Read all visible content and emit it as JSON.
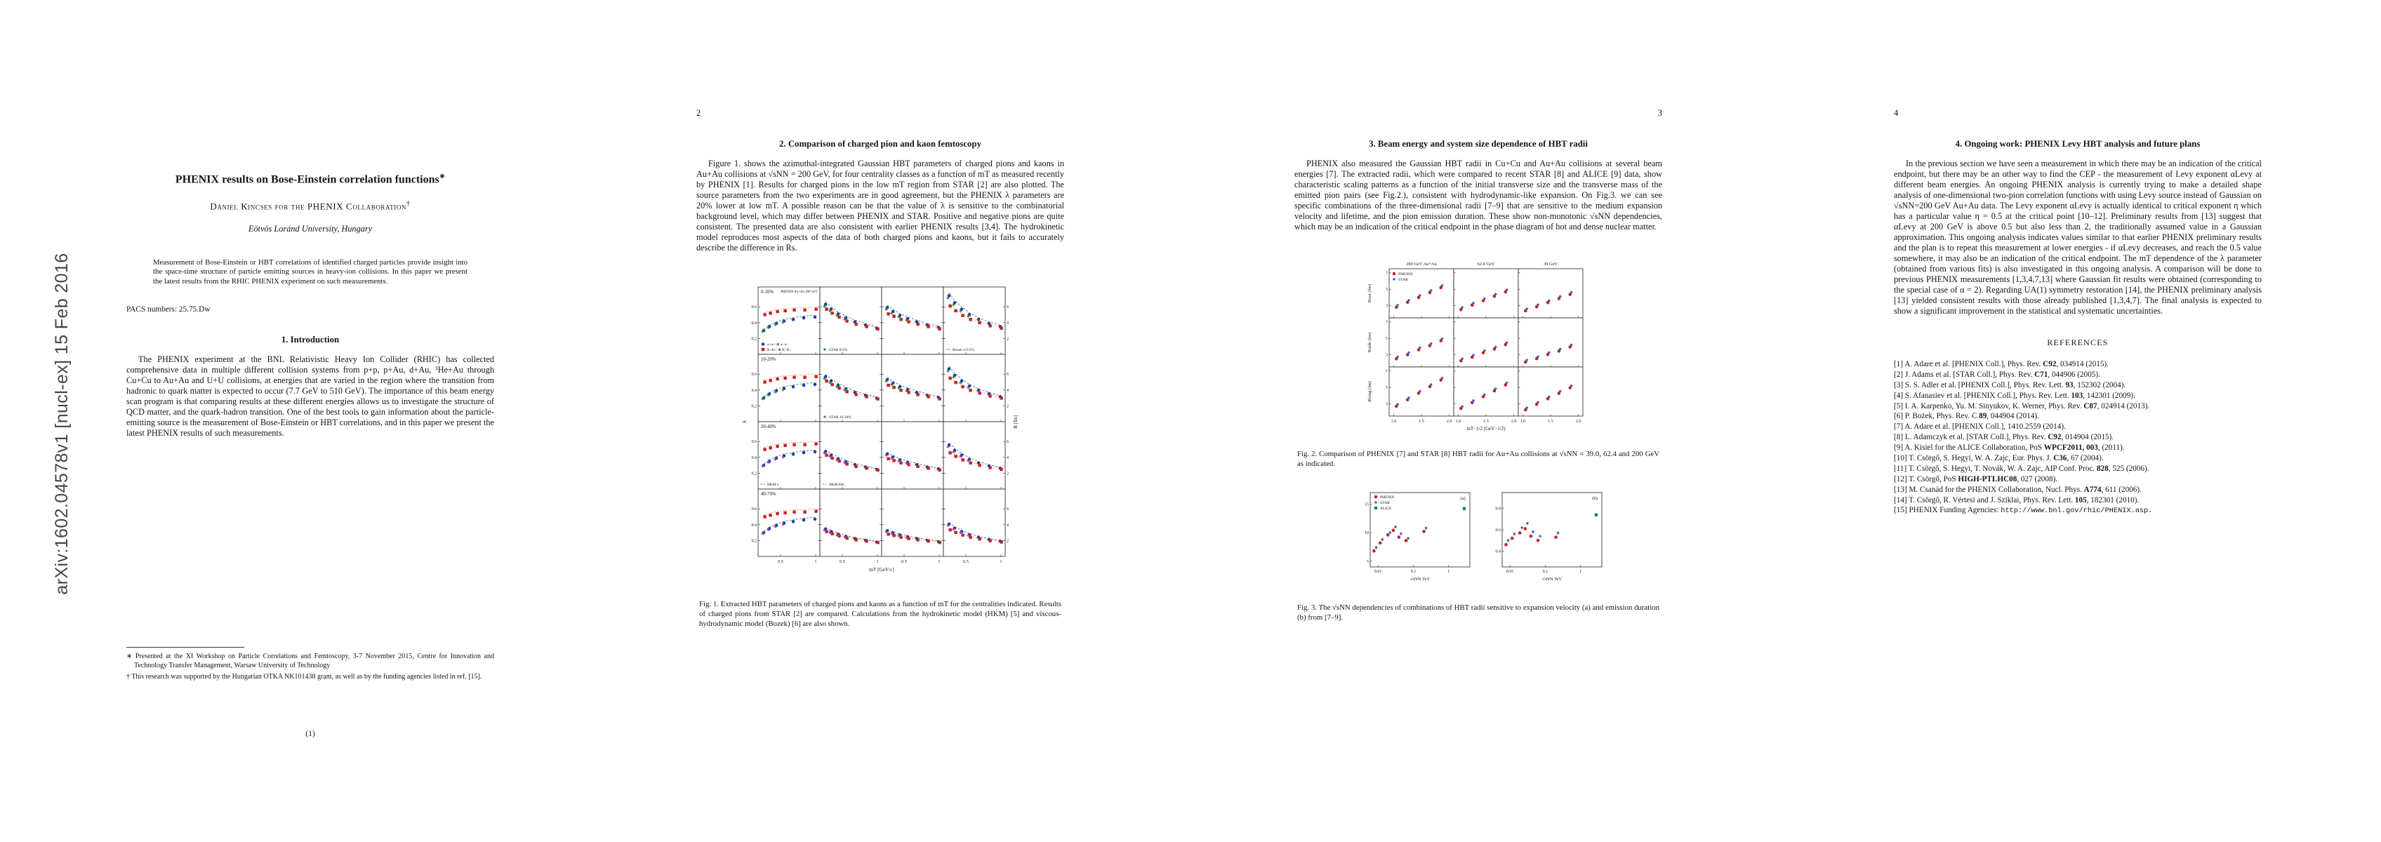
{
  "watermark": "arXiv:1602.04578v1  [nucl-ex]  15 Feb 2016",
  "page1": {
    "title": "PHENIX results on Bose-Einstein correlation functions",
    "title_note": "∗",
    "author": "Dániel Kincses for the PHENIX Collaboration",
    "author_note": "†",
    "affiliation": "Eötvös Loránd University, Hungary",
    "abstract": "Measurement of Bose-Einstein or HBT correlations of identified charged particles provide insight into the space-time structure of particle emitting sources in heavy-ion collisions. In this paper we present the latest results from the RHIC PHENIX experiment on such measurements.",
    "pacs": "PACS numbers: 25.75.Dw",
    "section1_heading": "1. Introduction",
    "intro": "The PHENIX experiment at the BNL Relativistic Heavy Ion Collider (RHIC) has collected comprehensive data in multiple different collision systems from p+p, p+Au, d+Au, ³He+Au through Cu+Cu to Au+Au and U+U collisions, at energies that are varied in the region where the transition from hadronic to quark matter is expected to occur (7.7 GeV to 510 GeV). The importance of this beam energy scan program is that comparing results at these different energies allows us to investigate the structure of QCD matter, and the quark-hadron transition. One of the best tools to gain information about the particle-emitting source is the measurement of Bose-Einstein or HBT correlations, and in this paper we present the latest PHENIX results of such measurements.",
    "footnote_star": "∗ Presented at the XI Workshop on Particle Correlations and Femtoscopy, 3-7 November 2015, Centre for Innovation and Technology Transfer Management, Warsaw University of Technology",
    "footnote_dagger": "† This research was supported by the Hungarian OTKA NK101438 grant, as well as by the funding agencies listed in ref. [15].",
    "page_number": "(1)"
  },
  "page2": {
    "page_number": "2",
    "heading": "2. Comparison of charged pion and kaon femtoscopy",
    "body": "Figure 1. shows the azimuthal-integrated Gaussian HBT parameters of charged pions and kaons in Au+Au collisions at √sNN = 200 GeV, for four centrality classes as a function of mT as measured recently by PHENIX [1]. Results for charged pions in the low mT region from STAR [2] are also plotted. The source parameters from the two experiments are in good agreement, but the PHENIX λ parameters are 20% lower at low mT. A possible reason can be that the value of λ is sensitive to the combinatorial background level, which may differ between PHENIX and STAR. Positive and negative pions are quite consistent. The presented data are also consistent with earlier PHENIX results [3,4]. The hydrokinetic model reproduces most aspects of the data of both charged pions and kaons, but it fails to accurately describe the difference in Rs.",
    "fig1_caption": "Fig. 1. Extracted HBT parameters of charged pions and kaons as a function of mT for the centralities indicated. Results of charged pions from STAR [2] are compared. Calculations from the hydrokinetic model (HKM) [5] and viscous-hydrodynamic model (Bozek) [6] are also shown.",
    "fig1": {
      "header": "PHENIX Au+Au 200 GeV",
      "rows": [
        "0-10%",
        "10-20%",
        "20-40%",
        "40-70%"
      ],
      "ylabel_left": "λ",
      "ylabel_right": "R [fm]",
      "xlabel": "mT [GeV/c]",
      "xticks": [
        0.5,
        1
      ],
      "x": [
        0.26,
        0.34,
        0.44,
        0.55,
        0.68,
        0.83,
        0.99
      ],
      "ylim_lambda": [
        0,
        0.85
      ],
      "ylim_r": [
        0,
        8.5
      ],
      "yticks_lambda": [
        0.2,
        0.4,
        0.6
      ],
      "yticks_r": [
        2,
        4,
        6
      ],
      "row_scale": [
        1.0,
        0.9,
        0.75,
        0.55
      ],
      "base": {
        "lambda": {
          "pi": [
            0.3,
            0.35,
            0.39,
            0.42,
            0.44,
            0.46,
            0.47
          ],
          "k": [
            0.5,
            0.52,
            0.54,
            0.55,
            0.56,
            0.56,
            0.57
          ]
        },
        "rout": {
          "pi": [
            6.3,
            5.7,
            5.1,
            4.6,
            4.1,
            3.7,
            3.3
          ],
          "k": [
            5.7,
            5.2,
            4.7,
            4.2,
            3.8,
            3.5,
            3.2
          ]
        },
        "rside": {
          "pi": [
            5.9,
            5.4,
            4.9,
            4.5,
            4.1,
            3.7,
            3.4
          ],
          "k": [
            5.1,
            4.8,
            4.4,
            4.1,
            3.8,
            3.5,
            3.2
          ]
        },
        "rlong": {
          "pi": [
            7.4,
            6.5,
            5.7,
            5.0,
            4.4,
            3.9,
            3.5
          ],
          "k": [
            6.1,
            5.5,
            4.9,
            4.4,
            4.0,
            3.6,
            3.3
          ]
        }
      },
      "series_colors": {
        "pi": "#1b3faa",
        "k": "#c42127",
        "star": "#1e8f3e",
        "star2": "#a43fb4",
        "hkm": "#666666",
        "hkmk": "#d97d1f"
      },
      "legend_panels": [
        {
          "row": 0,
          "col": 0,
          "items": [
            {
              "label": "π+π+ ⊕ π−π−",
              "marker": "circle",
              "color": "#1b3faa"
            },
            {
              "label": "K+K+ ⊕ K−K−",
              "marker": "square",
              "color": "#c42127"
            }
          ]
        },
        {
          "row": 0,
          "col": 1,
          "items": [
            {
              "label": "STAR 0-5%",
              "marker": "star",
              "color": "#1e8f3e"
            }
          ]
        },
        {
          "row": 1,
          "col": 1,
          "items": [
            {
              "label": "STAR 10-20%",
              "marker": "star",
              "color": "#a43fb4"
            }
          ]
        },
        {
          "row": 2,
          "col": 0,
          "items": [
            {
              "label": "HKM π",
              "marker": "dash",
              "color": "#666666"
            }
          ]
        },
        {
          "row": 2,
          "col": 1,
          "items": [
            {
              "label": "HKM KK",
              "marker": "dash",
              "color": "#d97d1f"
            }
          ]
        },
        {
          "row": 0,
          "col": 3,
          "items": [
            {
              "label": "Bozek π 0-5%",
              "marker": "dash",
              "color": "#17939b"
            }
          ]
        }
      ]
    }
  },
  "page3": {
    "page_number": "3",
    "heading": "3. Beam energy and system size dependence of HBT radii",
    "body": "PHENIX also measured the Gaussian HBT radii in Cu+Cu and Au+Au collisions at several beam energies [7]. The extracted radii, which were compared to recent STAR [8] and ALICE [9] data, show characteristic scaling patterns as a function of the initial transverse size and the transverse mass of the emitted pion pairs (see Fig.2.), consistent with hydrodynamic-like expansion. On Fig.3. we can see specific combinations of the three-dimensional radii [7–9] that are sensitive to the medium expansion velocity and lifetime, and the pion emission duration. These show non-monotonic √sNN dependencies, which may be an indication of the critical endpoint in the phase diagram of hot and dense nuclear matter.",
    "fig2_caption": "Fig. 2. Comparison of PHENIX [7] and STAR [8] HBT radii for Au+Au collisions at √sNN = 39.0, 62.4 and 200 GeV as indicated.",
    "fig3_caption": "Fig. 3. The √sNN dependencies of combinations of HBT radii sensitive to expansion velocity (a) and emission duration (b) from [7–9].",
    "fig2": {
      "col_headers": [
        "200 GeV Au+Au",
        "62.4 GeV",
        "39 GeV"
      ],
      "legend": [
        {
          "label": "PHENIX",
          "marker": "circle",
          "color": "#c42127",
          "open": false
        },
        {
          "label": "STAR",
          "marker": "star",
          "color": "#2b4bc4",
          "open": true
        }
      ],
      "row_ylabels": [
        "Rout (fm)",
        "Rside (fm)",
        "Rlong (fm)"
      ],
      "xlabel": "mT−1/2 (GeV−1/2)",
      "xticks": [
        1.0,
        1.5,
        2.0
      ],
      "x": [
        1.05,
        1.25,
        1.45,
        1.65,
        1.85
      ],
      "ylim": [
        1.5,
        7.5
      ],
      "yticks": [
        3,
        5,
        7
      ],
      "col_scale": [
        1.0,
        0.9,
        0.84
      ],
      "rows_base": [
        [
          2.8,
          3.4,
          4.0,
          4.6,
          5.2
        ],
        [
          2.5,
          3.0,
          3.6,
          4.1,
          4.7
        ],
        [
          2.7,
          3.5,
          4.3,
          5.1,
          5.9
        ]
      ]
    },
    "fig3": {
      "xlabel": "√sNN TeV",
      "xticks": [
        "0.01",
        "0.1",
        "1"
      ],
      "xlim": [
        0.006,
        4
      ],
      "legend": [
        {
          "label": "PHENIX",
          "marker": "circle",
          "color": "#c42127",
          "open": false
        },
        {
          "label": "STAR",
          "marker": "star",
          "color": "#2b4bc4",
          "open": true
        },
        {
          "label": "ALICE",
          "marker": "square",
          "color": "#1e8f3e",
          "open": false
        }
      ],
      "panels": [
        {
          "letter": "(a)",
          "ylim": [
            4,
            17
          ],
          "yticks": [
            5,
            10,
            15
          ],
          "phenix": {
            "x": [
              0.0077,
              0.0115,
              0.019,
              0.027,
              0.039,
              0.062,
              0.2
            ],
            "y": [
              6.8,
              8.2,
              9.6,
              10.4,
              9.2,
              8.6,
              10.2
            ]
          },
          "star": {
            "x": [
              0.0077,
              0.0115,
              0.019,
              0.027,
              0.039,
              0.062,
              0.2
            ],
            "y": [
              7.4,
              8.8,
              10.0,
              11.0,
              9.8,
              9.0,
              10.8
            ]
          },
          "alice": {
            "x": [
              2.76
            ],
            "y": [
              14.2
            ]
          }
        },
        {
          "letter": "(b)",
          "ylim": [
            0.25,
            0.95
          ],
          "yticks": [
            0.4,
            0.6,
            0.8
          ],
          "phenix": {
            "x": [
              0.0077,
              0.0115,
              0.019,
              0.027,
              0.039,
              0.062,
              0.2
            ],
            "y": [
              0.46,
              0.52,
              0.57,
              0.61,
              0.54,
              0.5,
              0.53
            ]
          },
          "star": {
            "x": [
              0.0077,
              0.0115,
              0.019,
              0.027,
              0.039,
              0.062,
              0.2
            ],
            "y": [
              0.5,
              0.56,
              0.62,
              0.66,
              0.58,
              0.54,
              0.57
            ]
          },
          "alice": {
            "x": [
              2.76
            ],
            "y": [
              0.74
            ]
          }
        }
      ]
    }
  },
  "page4": {
    "page_number": "4",
    "heading": "4. Ongoing work: PHENIX Levy HBT analysis and future plans",
    "body": "In the previous section we have seen a measurement in which there may be an indication of the critical endpoint, but there may be an other way to find the CEP - the measurement of Levy exponent αLevy at different beam energies. An ongoing PHENIX analysis is currently trying to make a detailed shape analysis of one-dimensional two-pion correlation functions with using Levy source instead of Gaussian on √sNN=200 GeV Au+Au data. The Levy exponent αLevy is actually identical to critical exponent η which has a particular value η = 0.5 at the critical point [10–12]. Preliminary results from [13] suggest that αLevy at 200 GeV is above 0.5 but also less than 2, the traditionally assumed value in a Gaussian approximation. This ongoing analysis indicates values similar to that earlier PHENIX preliminary results and the plan is to repeat this measurement at lower energies - if αLevy decreases, and reach the 0.5 value somewhere, it may also be an indication of the critical endpoint. The mT dependence of the λ parameter (obtained from various fits) is also investigated in this ongoing analysis. A comparison will be done to previous PHENIX measurements [1,3,4,7,13] where Gaussian fit results were obtained (corresponding to the special case of α = 2). Regarding UA(1) symmetry restoration [14], the PHENIX preliminary analysis [13] yielded consistent results with those already published [1,3,4,7]. The final analysis is expected to show a significant improvement in the statistical and systematic uncertainties.",
    "references_title": "REFERENCES",
    "references": [
      {
        "label": "[1]",
        "pre": "A. Adare et al. [PHENIX Coll.], Phys. Rev. ",
        "vol": "C92",
        "post": ", 034914 (2015)."
      },
      {
        "label": "[2]",
        "pre": "J. Adams et al. [STAR Coll.], Phys. Rev. ",
        "vol": "C71",
        "post": ", 044906 (2005)."
      },
      {
        "label": "[3]",
        "pre": "S. S. Adler et al. [PHENIX Coll.], Phys. Rev. Lett. ",
        "vol": "93",
        "post": ", 152302 (2004)."
      },
      {
        "label": "[4]",
        "pre": "S. Afanasiev et al. [PHENIX Coll.], Phys. Rev. Lett. ",
        "vol": "103",
        "post": ", 142301 (2009)."
      },
      {
        "label": "[5]",
        "pre": "I. A. Karpenko, Yu. M. Sinyukov, K. Werner, Phys. Rev. ",
        "vol": "C87",
        "post": ", 024914 (2013)."
      },
      {
        "label": "[6]",
        "pre": "P. Bożek, Phys. Rev. C ",
        "vol": "89",
        "post": ", 044904 (2014)."
      },
      {
        "label": "[7]",
        "pre": "A. Adare et al. [PHENIX Coll.], 1410.2559 (2014).",
        "vol": "",
        "post": ""
      },
      {
        "label": "[8]",
        "pre": "L. Adamczyk et al. [STAR Coll.], Phys. Rev. ",
        "vol": "C92",
        "post": ", 014904 (2015)."
      },
      {
        "label": "[9]",
        "pre": "A. Kisiel for the ALICE Collaboration, PoS ",
        "vol": "WPCF2011, 003",
        "post": ", (2011)."
      },
      {
        "label": "[10]",
        "pre": "T. Csörgő, S. Hegyi, W. A. Zajc, Eur. Phys. J. ",
        "vol": "C36",
        "post": ", 67 (2004)."
      },
      {
        "label": "[11]",
        "pre": "T. Csörgő, S. Hegyi, T. Novák, W. A. Zajc, AIP Conf. Proc. ",
        "vol": "828",
        "post": ", 525 (2006)."
      },
      {
        "label": "[12]",
        "pre": "T. Csörgő, P​oS ",
        "vol": "HIGH-PTLHC08",
        "post": ", 027 (2008)."
      },
      {
        "label": "[13]",
        "pre": "M. Csanád for the PHENIX Collaboration, Nucl. Phys. ",
        "vol": "A774",
        "post": ", 611 (2006)."
      },
      {
        "label": "[14]",
        "pre": "T. Csörgő, R. Vértesi and J. Sziklai, Phys. Rev. Lett. ",
        "vol": "105",
        "post": ", 182301 (2010)."
      },
      {
        "label": "[15]",
        "pre": "PHENIX Funding Agencies: ",
        "vol": "",
        "post": "",
        "url": "http://www.bnl.gov/rhic/PHENIX.asp."
      }
    ]
  }
}
